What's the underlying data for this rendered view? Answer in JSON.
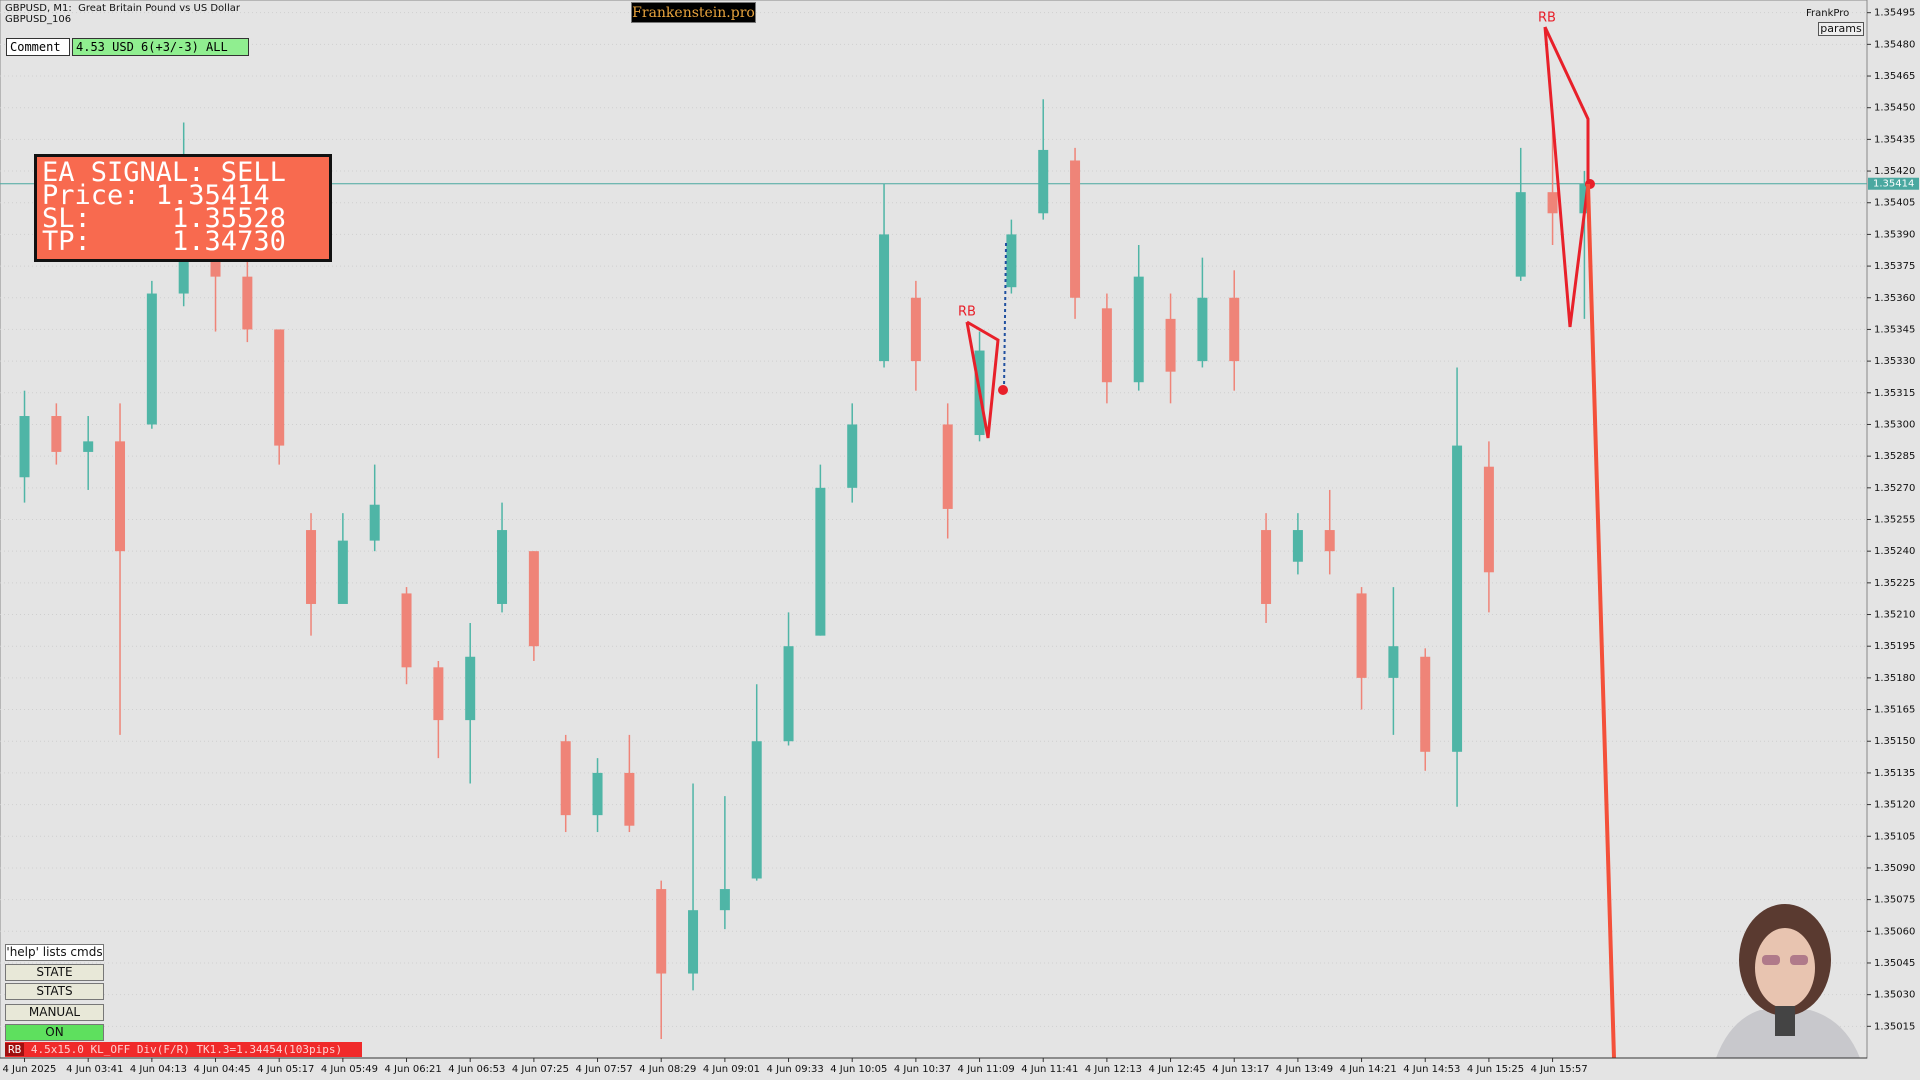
{
  "chart_data": {
    "type": "candlestick",
    "symbol_line": "GBPUSD, M1:  Great Britain Pound vs US Dollar",
    "symbol_sub": "GBPUSD_106",
    "categories": [
      "4 Jun 2025",
      null,
      "4 Jun 03:41",
      null,
      "4 Jun 04:13",
      null,
      "4 Jun 04:45",
      null,
      "4 Jun 05:17",
      null,
      "4 Jun 05:49",
      null,
      "4 Jun 06:21",
      null,
      "4 Jun 06:53",
      null,
      "4 Jun 07:25",
      null,
      "4 Jun 07:57",
      null,
      "4 Jun 08:29",
      null,
      "4 Jun 09:01",
      null,
      "4 Jun 09:33",
      null,
      "4 Jun 10:05",
      null,
      "4 Jun 10:37",
      null,
      "4 Jun 11:09",
      null,
      "4 Jun 11:41",
      null,
      "4 Jun 12:13",
      null,
      "4 Jun 12:45",
      null,
      "4 Jun 13:17",
      null,
      "4 Jun 13:49",
      null,
      "4 Jun 14:21",
      null,
      "4 Jun 14:53",
      null,
      "4 Jun 15:25",
      null,
      "4 Jun 15:57",
      null,
      null,
      null,
      null,
      null,
      null,
      null,
      null,
      null
    ],
    "open": [
      1.35275,
      1.35304,
      1.35287,
      1.35292,
      1.353,
      1.35362,
      1.3539,
      1.3537,
      1.35345,
      1.3525,
      1.35215,
      1.35245,
      1.3522,
      1.35185,
      1.3516,
      1.35215,
      1.3524,
      1.3515,
      1.35115,
      1.35135,
      1.3508,
      1.3504,
      1.3507,
      1.35085,
      1.3515,
      1.352,
      1.3527,
      1.3533,
      1.3536,
      1.353,
      1.35295,
      1.35365,
      1.354,
      1.35425,
      1.35355,
      1.3532,
      1.3535,
      1.3533,
      1.3536,
      1.3525,
      1.35235,
      1.3525,
      1.3522,
      1.3518,
      1.3519,
      1.35145,
      1.3528,
      1.3537,
      1.3541,
      1.354,
      null,
      null,
      null,
      null,
      null,
      null,
      null,
      null
    ],
    "high": [
      1.35316,
      1.3531,
      1.35304,
      1.3531,
      1.35368,
      1.35443,
      1.35402,
      1.35385,
      1.35344,
      1.35258,
      1.35258,
      1.35281,
      1.35223,
      1.35188,
      1.35206,
      1.35263,
      1.3524,
      1.35153,
      1.35142,
      1.35153,
      1.35084,
      1.3513,
      1.35124,
      1.35177,
      1.35211,
      1.35281,
      1.3531,
      1.35414,
      1.35368,
      1.3531,
      1.35344,
      1.35397,
      1.35454,
      1.35431,
      1.35362,
      1.35385,
      1.35362,
      1.35379,
      1.35373,
      1.35258,
      1.35258,
      1.35269,
      1.35223,
      1.35223,
      1.35194,
      1.35327,
      1.35292,
      1.35431,
      1.35449,
      1.3542,
      null,
      null,
      null,
      null,
      null,
      null,
      null,
      null
    ],
    "low": [
      1.35263,
      1.35281,
      1.35269,
      1.35153,
      1.35298,
      1.35356,
      1.35344,
      1.35339,
      1.35281,
      1.352,
      1.35217,
      1.3524,
      1.35177,
      1.35142,
      1.3513,
      1.35211,
      1.35188,
      1.35107,
      1.35107,
      1.35107,
      1.35009,
      1.35032,
      1.35061,
      1.35084,
      1.35148,
      1.352,
      1.35263,
      1.35327,
      1.35316,
      1.35246,
      1.35292,
      1.35362,
      1.35397,
      1.3535,
      1.3531,
      1.35316,
      1.3531,
      1.35327,
      1.35316,
      1.35206,
      1.35229,
      1.35229,
      1.35165,
      1.35153,
      1.35136,
      1.35119,
      1.35211,
      1.35368,
      1.35385,
      1.3535,
      null,
      null,
      null,
      null,
      null,
      null,
      null,
      null
    ],
    "close": [
      1.35304,
      1.35287,
      1.35292,
      1.3524,
      1.35362,
      1.3539,
      1.3537,
      1.35345,
      1.3529,
      1.35215,
      1.35245,
      1.35262,
      1.35185,
      1.3516,
      1.3519,
      1.3525,
      1.35195,
      1.35115,
      1.35135,
      1.3511,
      1.3504,
      1.3507,
      1.3508,
      1.3515,
      1.35195,
      1.3527,
      1.353,
      1.3539,
      1.3533,
      1.3526,
      1.35335,
      1.3539,
      1.3543,
      1.3536,
      1.3532,
      1.3537,
      1.35325,
      1.3536,
      1.3533,
      1.35215,
      1.3525,
      1.3524,
      1.3518,
      1.35195,
      1.35145,
      1.3529,
      1.3523,
      1.3541,
      1.354,
      1.35414,
      null,
      null,
      null,
      null,
      null,
      null,
      null,
      null
    ],
    "up_color": "#4fb5a6",
    "down_color": "#ef8478",
    "ylim": [
      1.35,
      1.35501
    ],
    "yticks": [
      1.35495,
      {
        "value": 1.3548,
        "label": "1.35480"
      },
      1.35465,
      {
        "value": 1.3545,
        "label": "1.35450"
      },
      1.35435,
      {
        "value": 1.3542,
        "label": "1.35420"
      },
      1.35405,
      {
        "value": 1.3539,
        "label": "1.35390"
      },
      1.35375,
      {
        "value": 1.3536,
        "label": "1.35360"
      },
      1.35345,
      {
        "value": 1.3533,
        "label": "1.35330"
      },
      1.35315,
      {
        "value": 1.353,
        "label": "1.35300"
      },
      1.35285,
      {
        "value": 1.3527,
        "label": "1.35270"
      },
      1.35255,
      {
        "value": 1.3524,
        "label": "1.35240"
      },
      1.35225,
      {
        "value": 1.3521,
        "label": "1.35210"
      },
      1.35195,
      {
        "value": 1.3518,
        "label": "1.35180"
      },
      1.35165,
      {
        "value": 1.3515,
        "label": "1.35150"
      },
      1.35135,
      {
        "value": 1.3512,
        "label": "1.35120"
      },
      1.35105,
      {
        "value": 1.3509,
        "label": "1.35090"
      },
      1.35075,
      {
        "value": 1.3506,
        "label": "1.35060"
      },
      1.35045,
      {
        "value": 1.3503,
        "label": "1.35030"
      },
      1.35015
    ],
    "current_price": 1.35414,
    "current_price_color": "#4aa8a0",
    "grid": true,
    "annotations": [
      "RB",
      "RB"
    ]
  },
  "ui": {
    "brand": "Frankenstein.pro",
    "comment_label": "Comment",
    "comment_value": "4.53 USD 6(+3/-3) ALL",
    "signal": [
      "EA SIGNAL: SELL",
      "Price: 1.35414",
      "SL:     1.35528",
      "TP:     1.34730"
    ],
    "account": "FrankPro",
    "params": "params",
    "buttons": [
      "'help' lists cmds",
      "STATE",
      "STATS",
      "MANUAL",
      "ON"
    ],
    "status_tag": "RB",
    "status_text": "4.5x15.0 KL_OFF Div(F/R) TK1.3=1.34454(103pips)"
  }
}
